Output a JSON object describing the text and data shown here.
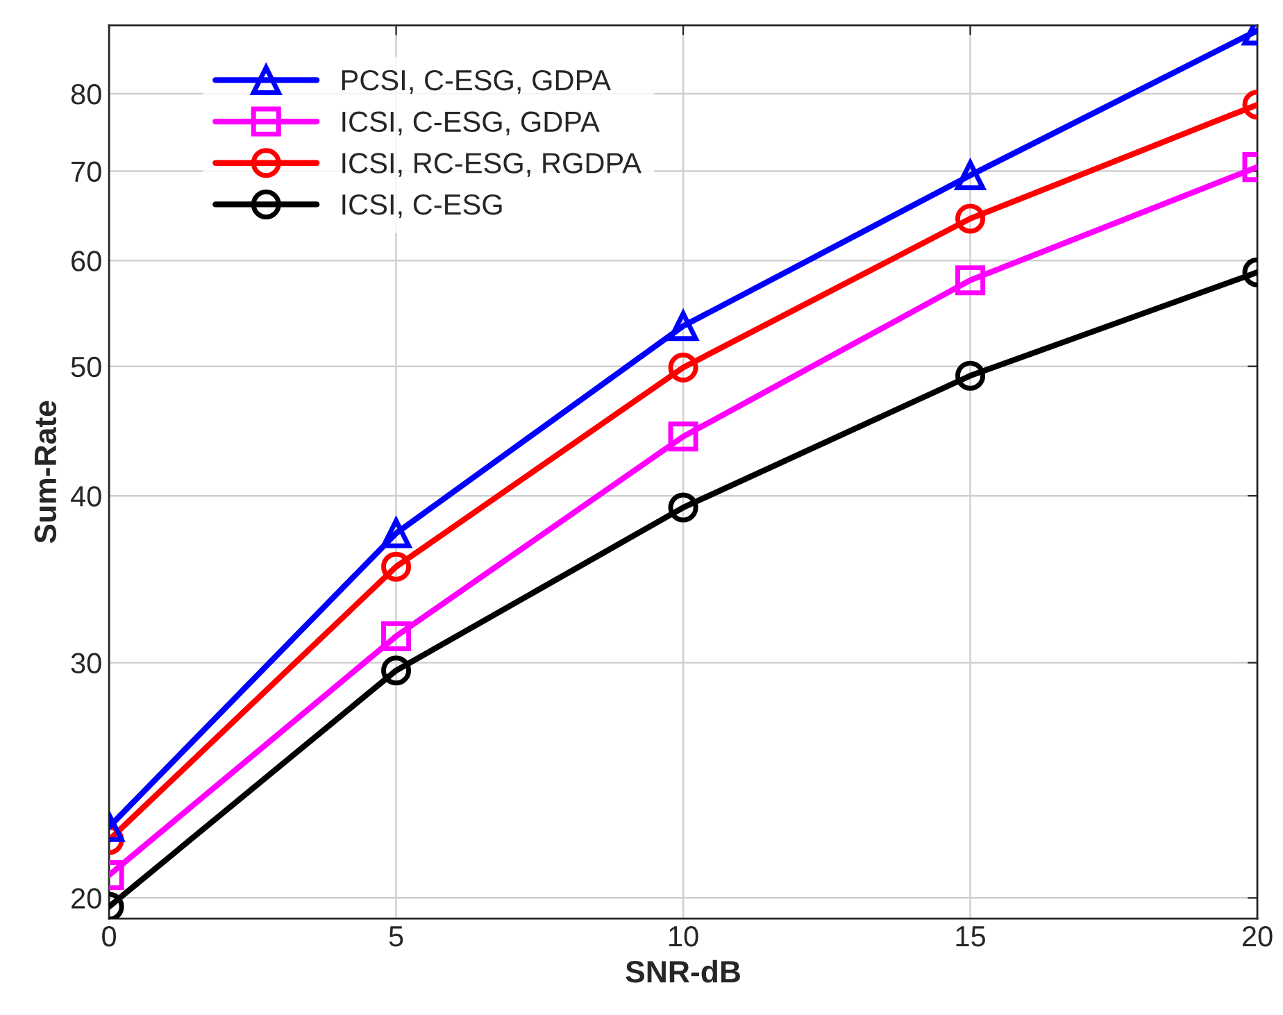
{
  "chart_data": {
    "type": "line",
    "xlabel": "SNR-dB",
    "ylabel": "Sum-Rate",
    "x": [
      0,
      5,
      10,
      15,
      20
    ],
    "series": [
      {
        "name": "PCSI, C-ESG, GDPA",
        "color": "#0000ff",
        "marker": "triangle",
        "values": [
          22.6,
          37.5,
          53.6,
          69.5,
          89.2
        ]
      },
      {
        "name": "ICSI, C-ESG, GDPA",
        "color": "#ff00ff",
        "marker": "square",
        "values": [
          20.8,
          31.4,
          44.3,
          58.0,
          70.5
        ]
      },
      {
        "name": "ICSI, RC-ESG, RGDPA",
        "color": "#ff0000",
        "marker": "circle",
        "values": [
          22.1,
          35.4,
          49.9,
          64.5,
          78.5
        ]
      },
      {
        "name": "ICSI, C-ESG",
        "color": "#000000",
        "marker": "circle",
        "values": [
          19.7,
          29.6,
          39.2,
          49.2,
          58.8
        ]
      }
    ],
    "log": "y",
    "xlim": [
      0,
      20
    ],
    "ylim": [
      19.3,
      90
    ],
    "xticks": [
      0,
      5,
      10,
      15,
      20
    ],
    "yticks": [
      20,
      30,
      40,
      50,
      60,
      70,
      80
    ],
    "grid": true,
    "legend": "top left",
    "line_style": "solid"
  }
}
